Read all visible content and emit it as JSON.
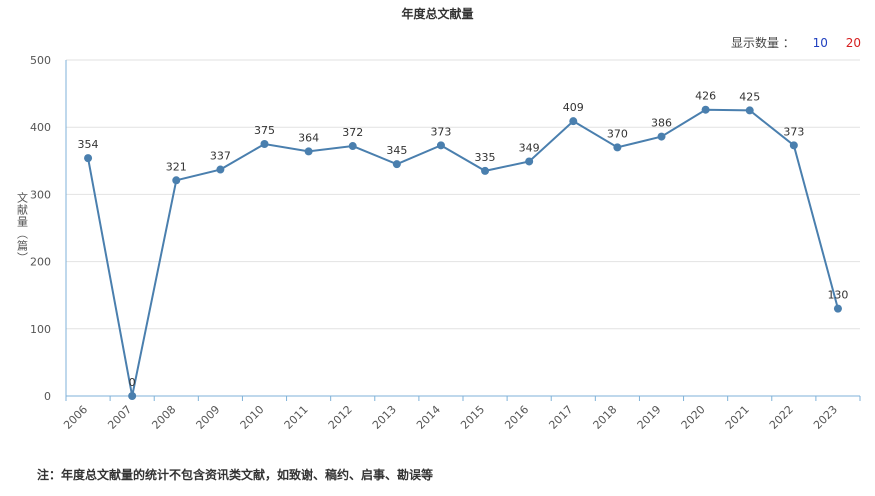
{
  "chart_data": {
    "type": "line",
    "title": "年度总文献量",
    "xlabel": "",
    "ylabel": "文献量（篇）",
    "ylim": [
      0,
      500
    ],
    "yticks": [
      0,
      100,
      200,
      300,
      400,
      500
    ],
    "grid": true,
    "categories": [
      "2006",
      "2007",
      "2008",
      "2009",
      "2010",
      "2011",
      "2012",
      "2013",
      "2014",
      "2015",
      "2016",
      "2017",
      "2018",
      "2019",
      "2020",
      "2021",
      "2022",
      "2023"
    ],
    "series": [
      {
        "values": [
          354,
          0,
          321,
          337,
          375,
          364,
          372,
          345,
          373,
          335,
          349,
          409,
          370,
          386,
          426,
          425,
          373,
          130
        ],
        "color": "#4a7fae"
      }
    ]
  },
  "controls": {
    "count_label": "显示数量 ：",
    "option_10": "10",
    "option_20": "20"
  },
  "footnote": "注：年度总文献量的统计不包含资讯类文献，如致谢、稿约、启事、勘误等"
}
